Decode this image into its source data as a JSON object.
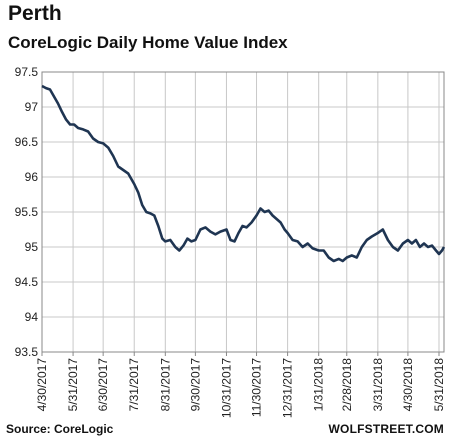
{
  "header": {
    "title": "Perth",
    "subtitle": "CoreLogic Daily Home Value Index"
  },
  "footer": {
    "source": "Source: CoreLogic",
    "brand": "WOLFSTREET.COM"
  },
  "colors": {
    "line": "#1f3552",
    "grid": "#c8c8c8",
    "axis": "#888888"
  },
  "chart_data": {
    "type": "line",
    "title": "CoreLogic Daily Home Value Index",
    "xlabel": "",
    "ylabel": "",
    "ylim": [
      93.5,
      97.5
    ],
    "yticks": [
      93.5,
      94,
      94.5,
      95,
      95.5,
      96,
      96.5,
      97,
      97.5
    ],
    "ytick_labels": [
      "93.5",
      "94",
      "94.5",
      "95",
      "95.5",
      "96",
      "96.5",
      "97",
      "97.5"
    ],
    "xlim": [
      "2017-04-30",
      "2018-06-05"
    ],
    "xticks": [
      "2017-04-30",
      "2017-05-31",
      "2017-06-30",
      "2017-07-31",
      "2017-08-31",
      "2017-09-30",
      "2017-10-31",
      "2017-11-30",
      "2017-12-31",
      "2018-01-31",
      "2018-02-28",
      "2018-03-31",
      "2018-04-30",
      "2018-05-31"
    ],
    "xtick_labels": [
      "4/30/2017",
      "5/31/2017",
      "6/30/2017",
      "7/31/2017",
      "8/31/2017",
      "9/30/2017",
      "10/31/2017",
      "11/30/2017",
      "12/31/2017",
      "1/31/2018",
      "2/28/2018",
      "3/31/2018",
      "4/30/2018",
      "5/31/2018"
    ],
    "grid": true,
    "legend": "none",
    "series": [
      {
        "name": "",
        "points": [
          [
            "2017-04-30",
            97.3
          ],
          [
            "2017-05-04",
            97.27
          ],
          [
            "2017-05-08",
            97.25
          ],
          [
            "2017-05-12",
            97.15
          ],
          [
            "2017-05-16",
            97.05
          ],
          [
            "2017-05-20",
            96.93
          ],
          [
            "2017-05-24",
            96.82
          ],
          [
            "2017-05-28",
            96.75
          ],
          [
            "2017-06-01",
            96.75
          ],
          [
            "2017-06-05",
            96.7
          ],
          [
            "2017-06-10",
            96.68
          ],
          [
            "2017-06-15",
            96.65
          ],
          [
            "2017-06-20",
            96.55
          ],
          [
            "2017-06-25",
            96.5
          ],
          [
            "2017-06-30",
            96.48
          ],
          [
            "2017-07-05",
            96.42
          ],
          [
            "2017-07-10",
            96.3
          ],
          [
            "2017-07-15",
            96.15
          ],
          [
            "2017-07-20",
            96.1
          ],
          [
            "2017-07-25",
            96.05
          ],
          [
            "2017-07-31",
            95.9
          ],
          [
            "2017-08-04",
            95.78
          ],
          [
            "2017-08-08",
            95.6
          ],
          [
            "2017-08-12",
            95.5
          ],
          [
            "2017-08-16",
            95.48
          ],
          [
            "2017-08-20",
            95.45
          ],
          [
            "2017-08-24",
            95.3
          ],
          [
            "2017-08-28",
            95.12
          ],
          [
            "2017-08-31",
            95.08
          ],
          [
            "2017-09-05",
            95.1
          ],
          [
            "2017-09-10",
            95.0
          ],
          [
            "2017-09-14",
            94.95
          ],
          [
            "2017-09-18",
            95.02
          ],
          [
            "2017-09-22",
            95.12
          ],
          [
            "2017-09-26",
            95.08
          ],
          [
            "2017-09-30",
            95.1
          ],
          [
            "2017-10-05",
            95.25
          ],
          [
            "2017-10-10",
            95.28
          ],
          [
            "2017-10-15",
            95.22
          ],
          [
            "2017-10-20",
            95.18
          ],
          [
            "2017-10-25",
            95.22
          ],
          [
            "2017-10-31",
            95.25
          ],
          [
            "2017-11-04",
            95.1
          ],
          [
            "2017-11-08",
            95.08
          ],
          [
            "2017-11-12",
            95.2
          ],
          [
            "2017-11-16",
            95.3
          ],
          [
            "2017-11-20",
            95.28
          ],
          [
            "2017-11-25",
            95.35
          ],
          [
            "2017-11-30",
            95.45
          ],
          [
            "2017-12-04",
            95.55
          ],
          [
            "2017-12-08",
            95.5
          ],
          [
            "2017-12-12",
            95.52
          ],
          [
            "2017-12-16",
            95.45
          ],
          [
            "2017-12-20",
            95.4
          ],
          [
            "2017-12-24",
            95.35
          ],
          [
            "2017-12-28",
            95.25
          ],
          [
            "2017-12-31",
            95.2
          ],
          [
            "2018-01-05",
            95.1
          ],
          [
            "2018-01-10",
            95.08
          ],
          [
            "2018-01-15",
            95.0
          ],
          [
            "2018-01-20",
            95.05
          ],
          [
            "2018-01-25",
            94.98
          ],
          [
            "2018-01-31",
            94.95
          ],
          [
            "2018-02-05",
            94.95
          ],
          [
            "2018-02-10",
            94.85
          ],
          [
            "2018-02-15",
            94.8
          ],
          [
            "2018-02-20",
            94.83
          ],
          [
            "2018-02-24",
            94.8
          ],
          [
            "2018-02-28",
            94.85
          ],
          [
            "2018-03-05",
            94.88
          ],
          [
            "2018-03-10",
            94.85
          ],
          [
            "2018-03-15",
            95.0
          ],
          [
            "2018-03-20",
            95.1
          ],
          [
            "2018-03-25",
            95.15
          ],
          [
            "2018-03-31",
            95.2
          ],
          [
            "2018-04-05",
            95.25
          ],
          [
            "2018-04-10",
            95.1
          ],
          [
            "2018-04-15",
            95.0
          ],
          [
            "2018-04-20",
            94.95
          ],
          [
            "2018-04-25",
            95.05
          ],
          [
            "2018-04-30",
            95.1
          ],
          [
            "2018-05-04",
            95.05
          ],
          [
            "2018-05-08",
            95.1
          ],
          [
            "2018-05-12",
            95.0
          ],
          [
            "2018-05-16",
            95.05
          ],
          [
            "2018-05-20",
            95.0
          ],
          [
            "2018-05-24",
            95.02
          ],
          [
            "2018-05-28",
            94.95
          ],
          [
            "2018-05-31",
            94.9
          ],
          [
            "2018-06-03",
            94.95
          ],
          [
            "2018-06-05",
            95.0
          ]
        ]
      }
    ]
  }
}
